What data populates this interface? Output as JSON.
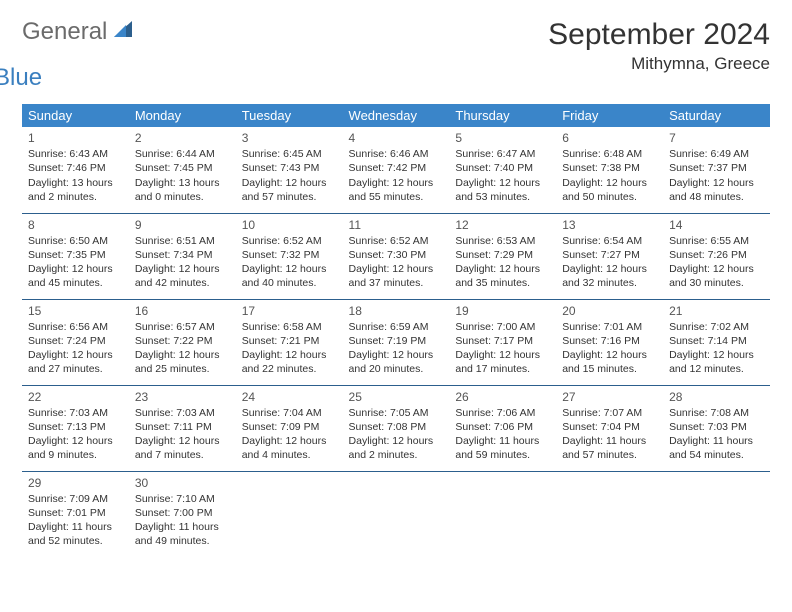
{
  "logo": {
    "general": "General",
    "blue": "Blue"
  },
  "title": "September 2024",
  "location": "Mithymna, Greece",
  "colors": {
    "header_bg": "#3a85c9",
    "header_text": "#ffffff",
    "row_border": "#2c5f8d",
    "logo_gray": "#6b6b6b",
    "logo_blue": "#3a7fbf",
    "body_text": "#333333",
    "background": "#ffffff"
  },
  "day_headers": [
    "Sunday",
    "Monday",
    "Tuesday",
    "Wednesday",
    "Thursday",
    "Friday",
    "Saturday"
  ],
  "weeks": [
    [
      {
        "num": "1",
        "sunrise": "Sunrise: 6:43 AM",
        "sunset": "Sunset: 7:46 PM",
        "daylight": "Daylight: 13 hours and 2 minutes."
      },
      {
        "num": "2",
        "sunrise": "Sunrise: 6:44 AM",
        "sunset": "Sunset: 7:45 PM",
        "daylight": "Daylight: 13 hours and 0 minutes."
      },
      {
        "num": "3",
        "sunrise": "Sunrise: 6:45 AM",
        "sunset": "Sunset: 7:43 PM",
        "daylight": "Daylight: 12 hours and 57 minutes."
      },
      {
        "num": "4",
        "sunrise": "Sunrise: 6:46 AM",
        "sunset": "Sunset: 7:42 PM",
        "daylight": "Daylight: 12 hours and 55 minutes."
      },
      {
        "num": "5",
        "sunrise": "Sunrise: 6:47 AM",
        "sunset": "Sunset: 7:40 PM",
        "daylight": "Daylight: 12 hours and 53 minutes."
      },
      {
        "num": "6",
        "sunrise": "Sunrise: 6:48 AM",
        "sunset": "Sunset: 7:38 PM",
        "daylight": "Daylight: 12 hours and 50 minutes."
      },
      {
        "num": "7",
        "sunrise": "Sunrise: 6:49 AM",
        "sunset": "Sunset: 7:37 PM",
        "daylight": "Daylight: 12 hours and 48 minutes."
      }
    ],
    [
      {
        "num": "8",
        "sunrise": "Sunrise: 6:50 AM",
        "sunset": "Sunset: 7:35 PM",
        "daylight": "Daylight: 12 hours and 45 minutes."
      },
      {
        "num": "9",
        "sunrise": "Sunrise: 6:51 AM",
        "sunset": "Sunset: 7:34 PM",
        "daylight": "Daylight: 12 hours and 42 minutes."
      },
      {
        "num": "10",
        "sunrise": "Sunrise: 6:52 AM",
        "sunset": "Sunset: 7:32 PM",
        "daylight": "Daylight: 12 hours and 40 minutes."
      },
      {
        "num": "11",
        "sunrise": "Sunrise: 6:52 AM",
        "sunset": "Sunset: 7:30 PM",
        "daylight": "Daylight: 12 hours and 37 minutes."
      },
      {
        "num": "12",
        "sunrise": "Sunrise: 6:53 AM",
        "sunset": "Sunset: 7:29 PM",
        "daylight": "Daylight: 12 hours and 35 minutes."
      },
      {
        "num": "13",
        "sunrise": "Sunrise: 6:54 AM",
        "sunset": "Sunset: 7:27 PM",
        "daylight": "Daylight: 12 hours and 32 minutes."
      },
      {
        "num": "14",
        "sunrise": "Sunrise: 6:55 AM",
        "sunset": "Sunset: 7:26 PM",
        "daylight": "Daylight: 12 hours and 30 minutes."
      }
    ],
    [
      {
        "num": "15",
        "sunrise": "Sunrise: 6:56 AM",
        "sunset": "Sunset: 7:24 PM",
        "daylight": "Daylight: 12 hours and 27 minutes."
      },
      {
        "num": "16",
        "sunrise": "Sunrise: 6:57 AM",
        "sunset": "Sunset: 7:22 PM",
        "daylight": "Daylight: 12 hours and 25 minutes."
      },
      {
        "num": "17",
        "sunrise": "Sunrise: 6:58 AM",
        "sunset": "Sunset: 7:21 PM",
        "daylight": "Daylight: 12 hours and 22 minutes."
      },
      {
        "num": "18",
        "sunrise": "Sunrise: 6:59 AM",
        "sunset": "Sunset: 7:19 PM",
        "daylight": "Daylight: 12 hours and 20 minutes."
      },
      {
        "num": "19",
        "sunrise": "Sunrise: 7:00 AM",
        "sunset": "Sunset: 7:17 PM",
        "daylight": "Daylight: 12 hours and 17 minutes."
      },
      {
        "num": "20",
        "sunrise": "Sunrise: 7:01 AM",
        "sunset": "Sunset: 7:16 PM",
        "daylight": "Daylight: 12 hours and 15 minutes."
      },
      {
        "num": "21",
        "sunrise": "Sunrise: 7:02 AM",
        "sunset": "Sunset: 7:14 PM",
        "daylight": "Daylight: 12 hours and 12 minutes."
      }
    ],
    [
      {
        "num": "22",
        "sunrise": "Sunrise: 7:03 AM",
        "sunset": "Sunset: 7:13 PM",
        "daylight": "Daylight: 12 hours and 9 minutes."
      },
      {
        "num": "23",
        "sunrise": "Sunrise: 7:03 AM",
        "sunset": "Sunset: 7:11 PM",
        "daylight": "Daylight: 12 hours and 7 minutes."
      },
      {
        "num": "24",
        "sunrise": "Sunrise: 7:04 AM",
        "sunset": "Sunset: 7:09 PM",
        "daylight": "Daylight: 12 hours and 4 minutes."
      },
      {
        "num": "25",
        "sunrise": "Sunrise: 7:05 AM",
        "sunset": "Sunset: 7:08 PM",
        "daylight": "Daylight: 12 hours and 2 minutes."
      },
      {
        "num": "26",
        "sunrise": "Sunrise: 7:06 AM",
        "sunset": "Sunset: 7:06 PM",
        "daylight": "Daylight: 11 hours and 59 minutes."
      },
      {
        "num": "27",
        "sunrise": "Sunrise: 7:07 AM",
        "sunset": "Sunset: 7:04 PM",
        "daylight": "Daylight: 11 hours and 57 minutes."
      },
      {
        "num": "28",
        "sunrise": "Sunrise: 7:08 AM",
        "sunset": "Sunset: 7:03 PM",
        "daylight": "Daylight: 11 hours and 54 minutes."
      }
    ],
    [
      {
        "num": "29",
        "sunrise": "Sunrise: 7:09 AM",
        "sunset": "Sunset: 7:01 PM",
        "daylight": "Daylight: 11 hours and 52 minutes."
      },
      {
        "num": "30",
        "sunrise": "Sunrise: 7:10 AM",
        "sunset": "Sunset: 7:00 PM",
        "daylight": "Daylight: 11 hours and 49 minutes."
      },
      null,
      null,
      null,
      null,
      null
    ]
  ]
}
